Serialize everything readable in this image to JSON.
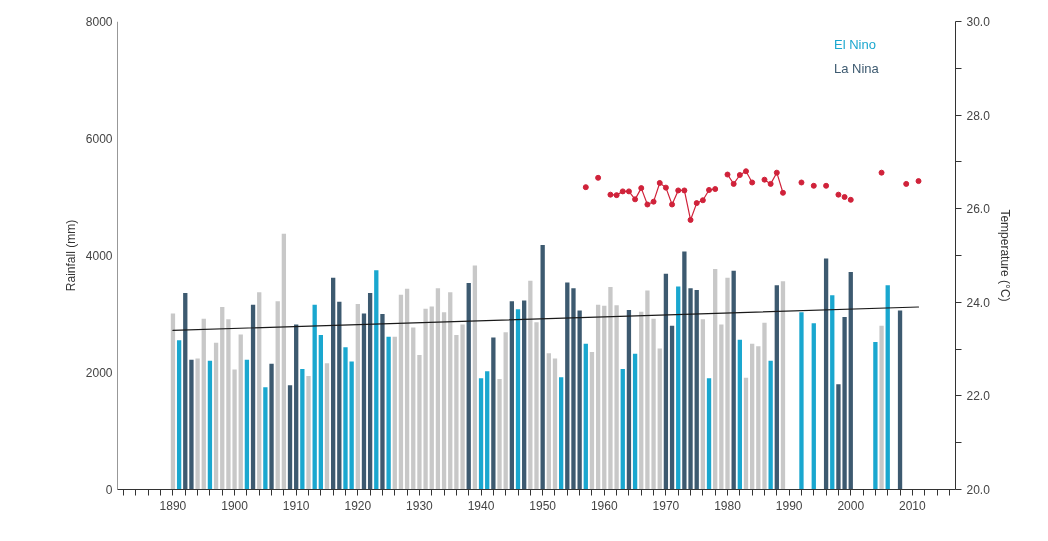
{
  "chart_data": {
    "type": "bar",
    "xlabel": null,
    "ylabel": "Rainfall (mm)",
    "y2label": "Temperature (°C)",
    "xlim": [
      1881,
      2017
    ],
    "xticks": [
      {
        "value": 1882,
        "label": null
      },
      {
        "value": 1884,
        "label": null
      },
      {
        "value": 1886,
        "label": null
      },
      {
        "value": 1888,
        "label": null
      },
      1890,
      {
        "value": 1892,
        "label": null
      },
      {
        "value": 1894,
        "label": null
      },
      {
        "value": 1896,
        "label": null
      },
      {
        "value": 1898,
        "label": null
      },
      1900,
      {
        "value": 1902,
        "label": null
      },
      {
        "value": 1904,
        "label": null
      },
      {
        "value": 1906,
        "label": null
      },
      {
        "value": 1908,
        "label": null
      },
      1910,
      {
        "value": 1912,
        "label": null
      },
      {
        "value": 1914,
        "label": null
      },
      {
        "value": 1916,
        "label": null
      },
      {
        "value": 1918,
        "label": null
      },
      1920,
      {
        "value": 1922,
        "label": null
      },
      {
        "value": 1924,
        "label": null
      },
      {
        "value": 1926,
        "label": null
      },
      {
        "value": 1928,
        "label": null
      },
      1930,
      {
        "value": 1932,
        "label": null
      },
      {
        "value": 1934,
        "label": null
      },
      {
        "value": 1936,
        "label": null
      },
      {
        "value": 1938,
        "label": null
      },
      1940,
      {
        "value": 1942,
        "label": null
      },
      {
        "value": 1944,
        "label": null
      },
      {
        "value": 1946,
        "label": null
      },
      {
        "value": 1948,
        "label": null
      },
      1950,
      {
        "value": 1952,
        "label": null
      },
      {
        "value": 1954,
        "label": null
      },
      {
        "value": 1956,
        "label": null
      },
      {
        "value": 1958,
        "label": null
      },
      1960,
      {
        "value": 1962,
        "label": null
      },
      {
        "value": 1964,
        "label": null
      },
      {
        "value": 1966,
        "label": null
      },
      {
        "value": 1968,
        "label": null
      },
      1970,
      {
        "value": 1972,
        "label": null
      },
      {
        "value": 1974,
        "label": null
      },
      {
        "value": 1976,
        "label": null
      },
      {
        "value": 1978,
        "label": null
      },
      1980,
      {
        "value": 1982,
        "label": null
      },
      {
        "value": 1984,
        "label": null
      },
      {
        "value": 1986,
        "label": null
      },
      {
        "value": 1988,
        "label": null
      },
      1990,
      {
        "value": 1992,
        "label": null
      },
      {
        "value": 1994,
        "label": null
      },
      {
        "value": 1996,
        "label": null
      },
      {
        "value": 1998,
        "label": null
      },
      2000,
      {
        "value": 2002,
        "label": null
      },
      {
        "value": 2004,
        "label": null
      },
      {
        "value": 2006,
        "label": null
      },
      {
        "value": 2008,
        "label": null
      },
      2010,
      {
        "value": 2012,
        "label": null
      },
      {
        "value": 2014,
        "label": null
      },
      {
        "value": 2016,
        "label": null
      }
    ],
    "ylim": [
      0,
      8000
    ],
    "yticks": [
      0,
      2000,
      4000,
      6000,
      8000
    ],
    "y2lim": [
      20,
      30
    ],
    "y2ticks": [
      {
        "value": 20,
        "label": "20.0"
      },
      {
        "value": 21,
        "label": null
      },
      {
        "value": 22,
        "label": "22.0"
      },
      {
        "value": 23,
        "label": null
      },
      {
        "value": 24,
        "label": "24.0"
      },
      {
        "value": 25,
        "label": null
      },
      {
        "value": 26,
        "label": "26.0"
      },
      {
        "value": 27,
        "label": null
      },
      {
        "value": 28,
        "label": "28.0"
      },
      {
        "value": 29,
        "label": null
      },
      {
        "value": 30,
        "label": "30.0"
      }
    ],
    "grid": false,
    "legend": "top right",
    "series": [
      {
        "color": "#c8c8c8",
        "x": [
          1890,
          1894,
          1895,
          1897,
          1898,
          1899,
          1900,
          1901,
          1904,
          1907,
          1908,
          1912,
          1915,
          1920,
          1926,
          1927,
          1928,
          1929,
          1930,
          1931,
          1932,
          1933,
          1934,
          1935,
          1936,
          1937,
          1939,
          1943,
          1944,
          1948,
          1949,
          1951,
          1952,
          1958,
          1959,
          1960,
          1961,
          1962,
          1966,
          1967,
          1968,
          1969,
          1976,
          1978,
          1979,
          1980,
          1983,
          1984,
          1985,
          1986,
          1989,
          2005
        ],
        "values": [
          3010,
          2240,
          2920,
          2510,
          3120,
          2910,
          2050,
          2650,
          3370,
          3220,
          4370,
          1940,
          2160,
          3170,
          2610,
          3330,
          3430,
          2770,
          2300,
          3090,
          3130,
          3440,
          3030,
          3370,
          2640,
          2820,
          3830,
          1890,
          2690,
          3570,
          2860,
          2330,
          2240,
          2350,
          3160,
          3140,
          3460,
          3150,
          3040,
          3400,
          2920,
          2410,
          2910,
          3770,
          2820,
          3620,
          1910,
          2490,
          2450,
          2850,
          3560,
          2800
        ]
      },
      {
        "name": "El Nino",
        "color": "#1aa7cf",
        "x": [
          1891,
          1896,
          1902,
          1905,
          1911,
          1913,
          1914,
          1918,
          1919,
          1923,
          1925,
          1940,
          1941,
          1946,
          1953,
          1957,
          1963,
          1965,
          1972,
          1977,
          1982,
          1987,
          1992,
          1994,
          1997,
          2004,
          2006
        ],
        "values": [
          2550,
          2200,
          2220,
          1750,
          2060,
          3160,
          2640,
          2430,
          2190,
          3750,
          2610,
          1900,
          2020,
          3080,
          1920,
          2490,
          2060,
          2320,
          3470,
          1900,
          2560,
          2200,
          3030,
          2840,
          3320,
          2520,
          3490
        ]
      },
      {
        "name": "La Nina",
        "color": "#3d5a70",
        "x": [
          1892,
          1893,
          1903,
          1906,
          1909,
          1910,
          1916,
          1917,
          1921,
          1922,
          1924,
          1938,
          1942,
          1945,
          1947,
          1950,
          1954,
          1955,
          1956,
          1964,
          1970,
          1971,
          1973,
          1974,
          1975,
          1981,
          1988,
          1996,
          1998,
          1999,
          2000,
          2008
        ],
        "values": [
          3360,
          2220,
          3160,
          2150,
          1780,
          2820,
          3620,
          3210,
          3010,
          3360,
          3000,
          3530,
          2600,
          3220,
          3230,
          4180,
          3540,
          3440,
          3060,
          3070,
          3690,
          2800,
          4070,
          3440,
          3410,
          3740,
          3490,
          3950,
          1800,
          2950,
          3720,
          3060
        ]
      },
      {
        "type": "line",
        "color": "#1a1a1a",
        "x": [
          1890,
          2011
        ],
        "values": [
          2720,
          3120
        ]
      },
      {
        "type": "line",
        "axis": "y2",
        "marker": "circle",
        "color": "#d0223a",
        "x": [
          1957,
          1958,
          1959,
          1960,
          1961,
          1962,
          1963,
          1964,
          1965,
          1966,
          1967,
          1968,
          1969,
          1970,
          1971,
          1972,
          1973,
          1974,
          1975,
          1976,
          1977,
          1978,
          1979,
          1980,
          1981,
          1982,
          1983,
          1984,
          1985,
          1986,
          1987,
          1988,
          1989
        ],
        "values": [
          26.46,
          null,
          26.66,
          null,
          26.3,
          26.29,
          26.37,
          26.37,
          26.2,
          26.44,
          26.09,
          26.15,
          26.55,
          26.45,
          26.09,
          26.39,
          26.39,
          25.76,
          26.12,
          26.18,
          26.4,
          26.42,
          null,
          26.73,
          26.53,
          26.72,
          26.8,
          26.56,
          null,
          26.62,
          26.53,
          26.77,
          26.34
        ]
      },
      {
        "type": "scatter",
        "axis": "y2",
        "marker": "circle",
        "color": "#d0223a",
        "x": [
          1992,
          1994,
          1996,
          1998,
          1999,
          2000,
          2005,
          2009,
          2011
        ],
        "values": [
          26.56,
          26.49,
          26.49,
          26.3,
          26.25,
          26.19,
          26.77,
          26.53,
          26.59
        ]
      }
    ]
  }
}
